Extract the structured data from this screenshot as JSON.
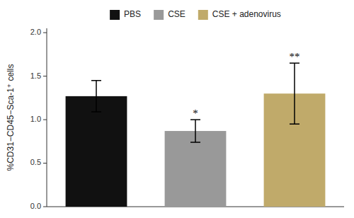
{
  "chart_data": {
    "type": "bar",
    "categories": [
      "PBS",
      "CSE",
      "CSE + adenovirus"
    ],
    "values": [
      1.27,
      0.87,
      1.3
    ],
    "errors": [
      0.18,
      0.13,
      0.35
    ],
    "colors": [
      "#111111",
      "#999999",
      "#c0aa6a"
    ],
    "annotations": [
      {
        "text": "*",
        "x": "CSE"
      },
      {
        "text": "**",
        "x": "CSE + adenovirus"
      }
    ],
    "ylabel": "%CD31−CD45−Sca-1⁺ cells",
    "ylim": [
      0.0,
      2.05
    ],
    "yticks": [
      {
        "value": 0.0,
        "label": "0.0"
      },
      0.5,
      {
        "value": 1.0,
        "label": "1.0"
      },
      1.5,
      {
        "value": 2.0,
        "label": "2.0"
      }
    ],
    "tick_labels": "y",
    "legend": "top",
    "grid": false
  }
}
